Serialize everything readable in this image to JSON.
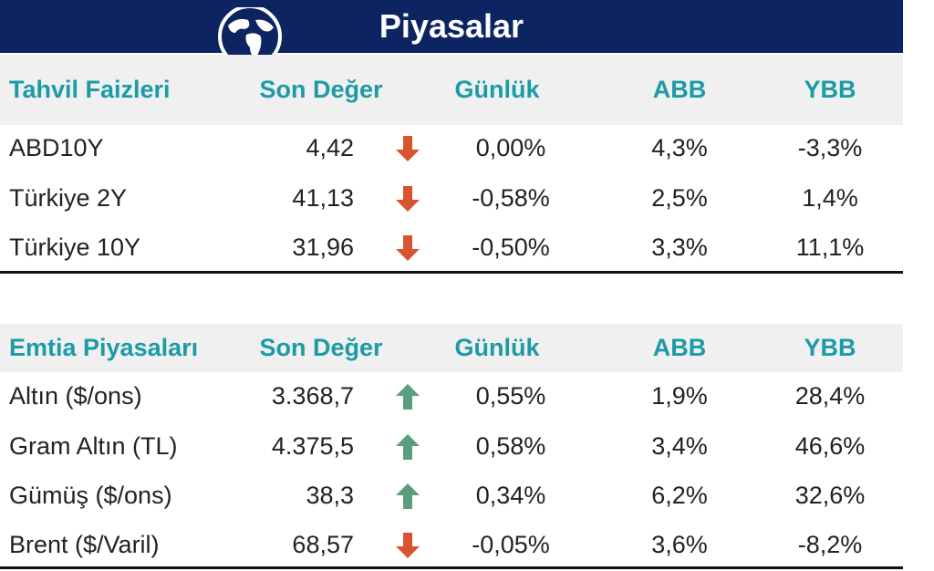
{
  "header": {
    "title": "Piyasalar"
  },
  "tables": [
    {
      "columns": [
        "Tahvil Faizleri",
        "Son Değer",
        "Günlük",
        "ABB",
        "YBB"
      ],
      "rows": [
        {
          "cells": [
            "ABD10Y",
            "4,42",
            "0,00%",
            "4,3%",
            "-3,3%"
          ],
          "arrow": "down"
        },
        {
          "cells": [
            "Türkiye 2Y",
            "41,13",
            "-0,58%",
            "2,5%",
            "1,4%"
          ],
          "arrow": "down"
        },
        {
          "cells": [
            "Türkiye 10Y",
            "31,96",
            "-0,50%",
            "3,3%",
            "11,1%"
          ],
          "arrow": "down"
        }
      ]
    },
    {
      "columns": [
        "Emtia Piyasaları",
        "Son Değer",
        "Günlük",
        "ABB",
        "YBB"
      ],
      "rows": [
        {
          "cells": [
            "Altın ($/ons)",
            "3.368,7",
            "0,55%",
            "1,9%",
            "28,4%"
          ],
          "arrow": "up"
        },
        {
          "cells": [
            "Gram Altın (TL)",
            "4.375,5",
            "0,58%",
            "3,4%",
            "46,6%"
          ],
          "arrow": "up"
        },
        {
          "cells": [
            "Gümüş ($/ons)",
            "38,3",
            "0,34%",
            "6,2%",
            "32,6%"
          ],
          "arrow": "up"
        },
        {
          "cells": [
            "Brent  ($/Varil)",
            "68,57",
            "-0,05%",
            "3,6%",
            "-8,2%"
          ],
          "arrow": "down"
        }
      ]
    }
  ]
}
